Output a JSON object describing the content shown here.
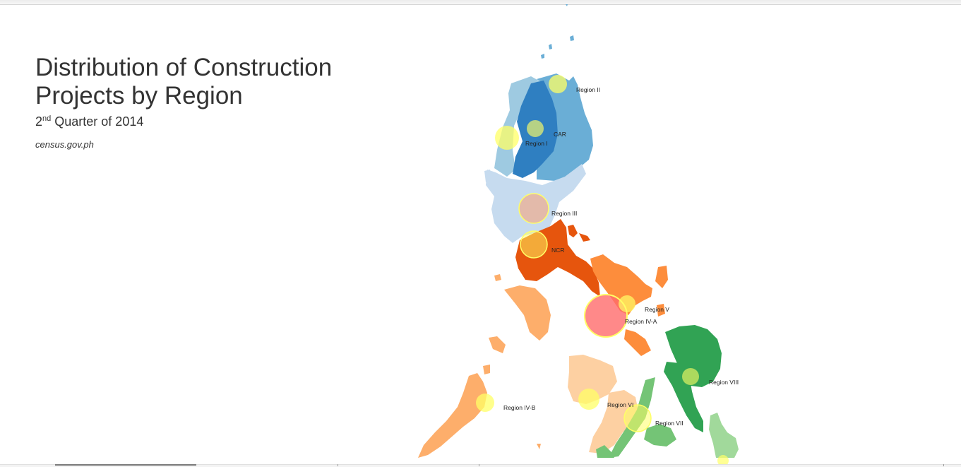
{
  "title_line1": "Distribution of Construction",
  "title_line2": "Projects by Region",
  "subtitle_ordinal": "2",
  "subtitle_suffix": "nd",
  "subtitle_rest": " Quarter of 2014",
  "source": "census.gov.ph",
  "region_labels": {
    "region_ii": "Region II",
    "car": "CAR",
    "region_i": "Region I",
    "region_iii": "Region III",
    "ncr": "NCR",
    "region_v": "Region V",
    "region_iva": "Region IV-A",
    "region_viii": "Region VIII",
    "region_ivb": "Region IV-B",
    "region_vi": "Region VI",
    "region_vii": "Region VII"
  },
  "colors": {
    "region_ii": "#6aaed6",
    "car": "#2f7fc1",
    "region_i": "#9ecae1",
    "region_iii": "#c6dbef",
    "ncr_iva": "#e6550d",
    "region_v": "#fd8d3c",
    "region_ivb": "#fdae6b",
    "region_vi": "#fdd0a2",
    "region_viii": "#31a354",
    "region_vii": "#74c476",
    "eastern_visayas_light": "#a1d99b",
    "bubble_default": "#ffff66",
    "bubble_max": "#ff6b6b"
  }
}
